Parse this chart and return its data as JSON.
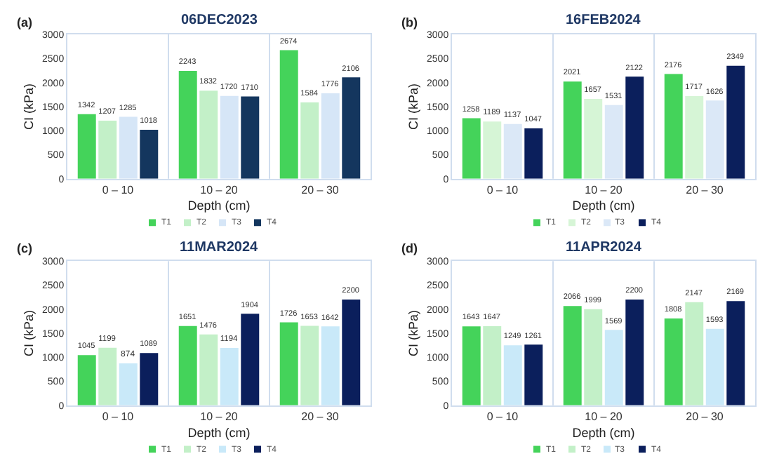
{
  "chart_data": [
    {
      "type": "bar",
      "title": "06DEC2023",
      "xlabel": "Depth (cm)",
      "ylabel": "CI (kPa)",
      "annotations": [
        "(a)"
      ],
      "categories": [
        "0 – 10",
        "10 – 20",
        "20 – 30"
      ],
      "ylim": [
        0,
        3000
      ],
      "yticks": [
        0,
        500,
        1000,
        1500,
        2000,
        2500,
        3000
      ],
      "grid": "x",
      "legend": "bottom",
      "data_labels": true,
      "series": [
        {
          "name": "T1",
          "color": "#44d35a",
          "values": [
            1342,
            2243,
            2674
          ]
        },
        {
          "name": "T2",
          "color": "#c3f0c8",
          "values": [
            1207,
            1832,
            1584
          ]
        },
        {
          "name": "T3",
          "color": "#d6e6f7",
          "values": [
            1285,
            1720,
            1776
          ]
        },
        {
          "name": "T4",
          "color": "#14365e",
          "values": [
            1018,
            1710,
            2106
          ]
        }
      ]
    },
    {
      "type": "bar",
      "title": "16FEB2024",
      "xlabel": "Depth (cm)",
      "ylabel": "CI (kPa)",
      "annotations": [
        "(b)"
      ],
      "categories": [
        "0 – 10",
        "10 – 20",
        "20 – 30"
      ],
      "ylim": [
        0,
        3000
      ],
      "yticks": [
        0,
        500,
        1000,
        1500,
        2000,
        2500,
        3000
      ],
      "grid": "x",
      "legend": "bottom",
      "data_labels": true,
      "series": [
        {
          "name": "T1",
          "color": "#44d35a",
          "values": [
            1258,
            2021,
            2176
          ]
        },
        {
          "name": "T2",
          "color": "#d6f5d6",
          "values": [
            1189,
            1657,
            1717
          ]
        },
        {
          "name": "T3",
          "color": "#dbe8f7",
          "values": [
            1137,
            1531,
            1626
          ]
        },
        {
          "name": "T4",
          "color": "#0b1f5c",
          "values": [
            1047,
            2122,
            2349
          ]
        }
      ]
    },
    {
      "type": "bar",
      "title": "11MAR2024",
      "xlabel": "Depth (cm)",
      "ylabel": "CI (kPa)",
      "annotations": [
        "(c)"
      ],
      "categories": [
        "0 – 10",
        "10 – 20",
        "20 – 30"
      ],
      "ylim": [
        0,
        3000
      ],
      "yticks": [
        0,
        500,
        1000,
        1500,
        2000,
        2500,
        3000
      ],
      "grid": "x",
      "legend": "bottom",
      "data_labels": true,
      "series": [
        {
          "name": "T1",
          "color": "#44d35a",
          "values": [
            1045,
            1651,
            1726
          ]
        },
        {
          "name": "T2",
          "color": "#c3f0c8",
          "values": [
            1199,
            1476,
            1653
          ]
        },
        {
          "name": "T3",
          "color": "#c9e9f9",
          "values": [
            874,
            1194,
            1642
          ]
        },
        {
          "name": "T4",
          "color": "#0b1f5c",
          "values": [
            1089,
            1904,
            2200
          ]
        }
      ]
    },
    {
      "type": "bar",
      "title": "11APR2024",
      "xlabel": "Depth (cm)",
      "ylabel": "CI (kPa)",
      "annotations": [
        "(d)"
      ],
      "categories": [
        "0 – 10",
        "10 – 20",
        "20 – 30"
      ],
      "ylim": [
        0,
        3000
      ],
      "yticks": [
        0,
        500,
        1000,
        1500,
        2000,
        2500,
        3000
      ],
      "grid": "x",
      "legend": "bottom",
      "data_labels": true,
      "series": [
        {
          "name": "T1",
          "color": "#44d35a",
          "values": [
            1643,
            2066,
            1808
          ]
        },
        {
          "name": "T2",
          "color": "#c3f0c8",
          "values": [
            1647,
            1999,
            2147
          ]
        },
        {
          "name": "T3",
          "color": "#c9e9f9",
          "values": [
            1249,
            1569,
            1593
          ]
        },
        {
          "name": "T4",
          "color": "#0b1f5c",
          "values": [
            1261,
            2200,
            2169
          ]
        }
      ]
    }
  ]
}
